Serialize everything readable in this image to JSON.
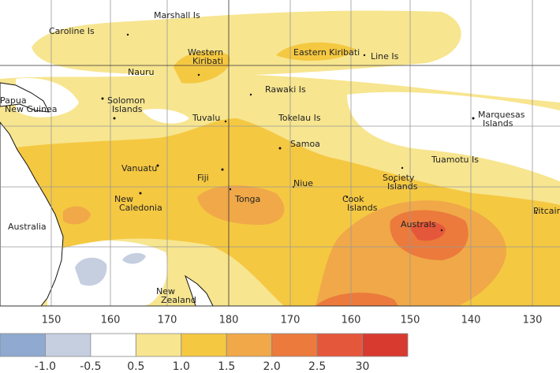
{
  "map": {
    "places": [
      {
        "lines": [
          "Marshall Is"
        ]
      },
      {
        "lines": [
          "Caroline Is"
        ]
      },
      {
        "lines": [
          "Western",
          "Kiribati"
        ]
      },
      {
        "lines": [
          "Eastern Kiribati"
        ]
      },
      {
        "lines": [
          "Line Is"
        ]
      },
      {
        "lines": [
          "Nauru"
        ]
      },
      {
        "lines": [
          "Rawaki Is"
        ]
      },
      {
        "lines": [
          "Papua",
          "New Guinea"
        ]
      },
      {
        "lines": [
          "Solomon",
          "Islands"
        ]
      },
      {
        "lines": [
          "Tuvalu"
        ]
      },
      {
        "lines": [
          "Tokelau Is"
        ]
      },
      {
        "lines": [
          "Marquesas",
          "Islands"
        ]
      },
      {
        "lines": [
          "Samoa"
        ]
      },
      {
        "lines": [
          "Tuamotu Is"
        ]
      },
      {
        "lines": [
          "Vanuatu"
        ]
      },
      {
        "lines": [
          "Fiji"
        ]
      },
      {
        "lines": [
          "Niue"
        ]
      },
      {
        "lines": [
          "Society",
          "Islands"
        ]
      },
      {
        "lines": [
          "New",
          "Caledonia"
        ]
      },
      {
        "lines": [
          "Tonga"
        ]
      },
      {
        "lines": [
          "Cook",
          "Islands"
        ]
      },
      {
        "lines": [
          "Australia"
        ]
      },
      {
        "lines": [
          "Australs"
        ]
      },
      {
        "lines": [
          "Pitcairn"
        ]
      },
      {
        "lines": [
          "New",
          "Zealand"
        ]
      }
    ],
    "longitude_labels": [
      "150",
      "160",
      "170",
      "180",
      "170",
      "160",
      "150",
      "140",
      "130"
    ],
    "colorbar": {
      "colors": [
        "#8fa9d0",
        "#c5cfe0",
        "#ffffff",
        "#f7e58f",
        "#f5c842",
        "#f0a848",
        "#eb7a3c",
        "#e5573a",
        "#d83a30"
      ],
      "labels": [
        "-1.0",
        "-0.5",
        "0.5",
        "1.0",
        "1.5",
        "2.0",
        "2.5",
        "30"
      ]
    }
  }
}
